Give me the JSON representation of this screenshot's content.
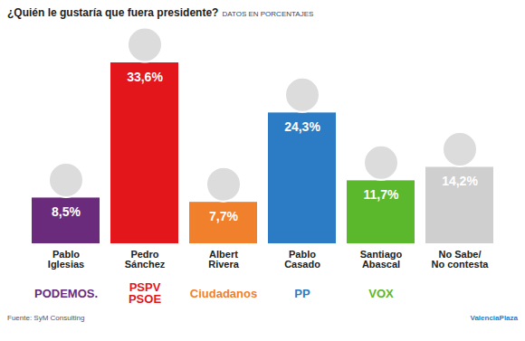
{
  "chart_data": {
    "type": "bar",
    "title": "¿Quién le gustaría que fuera presidente?",
    "subtitle": "DATOS EN PORCENTAJES",
    "categories": [
      "Pablo\nIglesias",
      "Pedro\nSánchez",
      "Albert\nRivera",
      "Pablo\nCasado",
      "Santiago\nAbascal",
      "No Sabe/\nNo contesta"
    ],
    "values": [
      8.5,
      33.6,
      7.7,
      24.3,
      11.7,
      14.2
    ],
    "value_labels": [
      "8,5%",
      "33,6%",
      "7,7%",
      "24,3%",
      "11,7%",
      "14,2%"
    ],
    "parties": [
      "PODEMOS.",
      "PSPV\nPSOE",
      "Ciudadanos",
      "PP",
      "VOX",
      null
    ],
    "colors": [
      "#6b2b7c",
      "#e3161b",
      "#f0802c",
      "#2b7cc5",
      "#5bb82c",
      "#cfcfcf"
    ],
    "data_labels": true,
    "tick_labels": "x",
    "source": "Fuente: SyM Consulting",
    "brand": "ValenciaPlaza"
  }
}
